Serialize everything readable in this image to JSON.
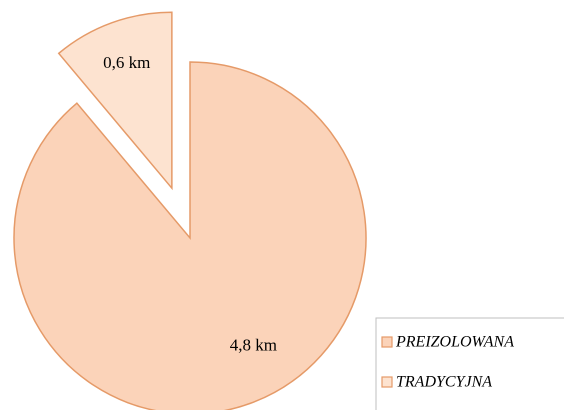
{
  "chart_data": {
    "type": "pie",
    "categories": [
      "PREIZOLOWANA",
      "TRADYCYJNA"
    ],
    "values": [
      4.8,
      0.6
    ],
    "value_labels": [
      "4,8 km",
      "0,6 km"
    ],
    "colors": [
      "#fbd3b9",
      "#fde3d0"
    ],
    "explode": [
      false,
      true
    ],
    "legend": "bottom-right"
  }
}
